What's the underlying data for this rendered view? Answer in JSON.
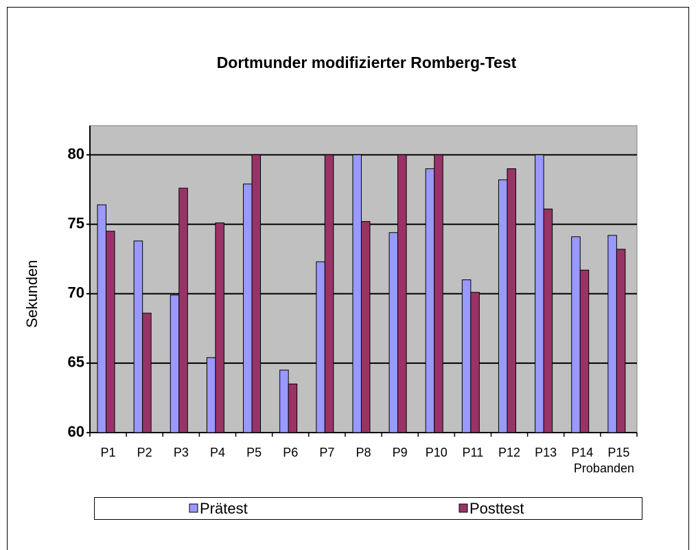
{
  "chart_data": {
    "type": "bar",
    "title": "Dortmunder modifizierter Romberg-Test",
    "x_label": "Probanden",
    "y_label": "Sekunden",
    "categories": [
      "P1",
      "P2",
      "P3",
      "P4",
      "P5",
      "P6",
      "P7",
      "P8",
      "P9",
      "P10",
      "P11",
      "P12",
      "P13",
      "P14",
      "P15"
    ],
    "series": [
      {
        "name": "Prätest",
        "color": "#9999ff",
        "values": [
          76.4,
          73.8,
          69.9,
          65.4,
          77.9,
          64.5,
          72.3,
          80,
          74.4,
          79,
          71,
          78.2,
          80,
          74.1,
          74.2
        ]
      },
      {
        "name": "Posttest",
        "color": "#993366",
        "values": [
          74.5,
          68.6,
          77.6,
          75.1,
          80,
          63.5,
          80,
          75.2,
          80,
          80,
          70.1,
          79,
          76.1,
          71.7,
          73.2
        ]
      }
    ],
    "ylim": [
      60,
      82.1
    ],
    "yticks": [
      60,
      65,
      70,
      75,
      80
    ],
    "grid": true,
    "legend": "bottom"
  }
}
